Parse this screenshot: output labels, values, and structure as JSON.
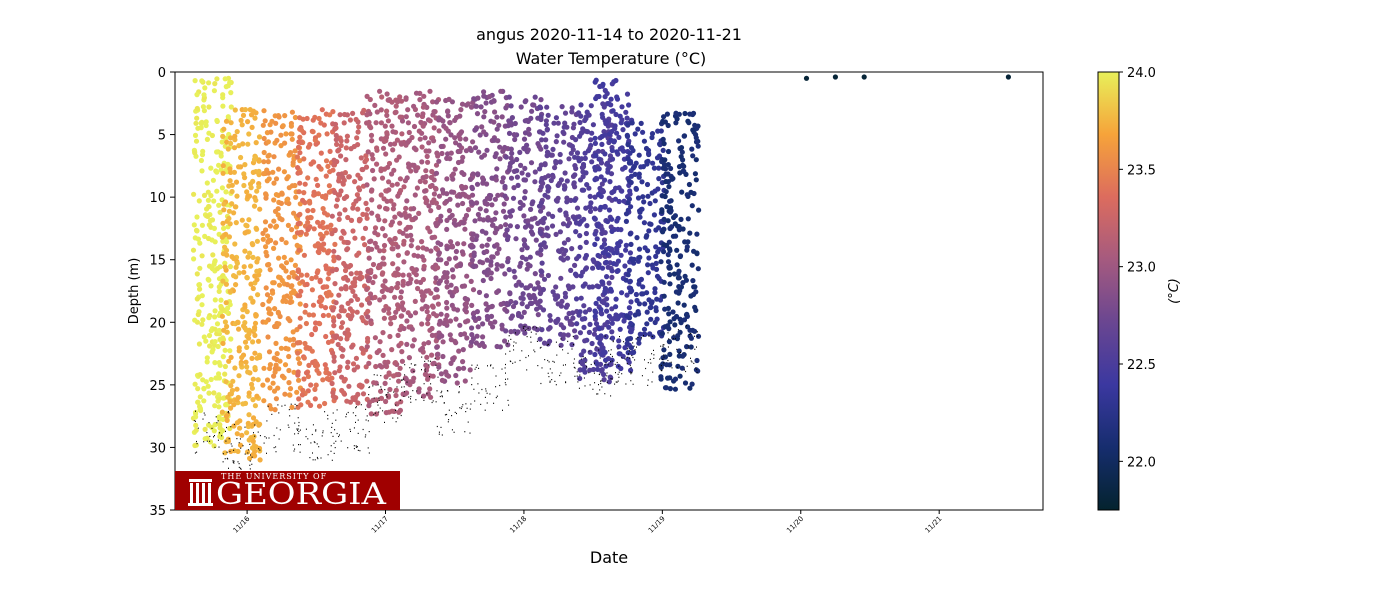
{
  "chart_data": {
    "type": "scatter",
    "title": "angus 2020-11-14 to 2020-11-21",
    "subtitle": "Water Temperature (°C)",
    "xlabel": "Date",
    "ylabel": "Depth (m)",
    "xlim": [
      "2020-11-15 11:30",
      "2020-11-21 18:00"
    ],
    "ylim": [
      35,
      0
    ],
    "yaxis_inverted": true,
    "x_ticks": [
      "11/16",
      "11/17",
      "11/18",
      "11/19",
      "11/20",
      "11/21"
    ],
    "y_ticks": [
      "0",
      "5",
      "10",
      "15",
      "20",
      "25",
      "30",
      "35"
    ],
    "grid": false,
    "colorbar": {
      "label": "(°C)",
      "range": [
        21.75,
        24.0
      ],
      "ticks": [
        "22.0",
        "22.5",
        "23.0",
        "23.5",
        "24.0"
      ],
      "colormap": "thermal",
      "colors": [
        "#04232e",
        "#162d6e",
        "#3b38a0",
        "#6a4691",
        "#a55a7f",
        "#dc6c5e",
        "#f6a33a",
        "#e8f05a"
      ]
    },
    "profiles": [
      {
        "date": "2020-11-15 18:00",
        "temp": 24.0,
        "min_depth": 0.5,
        "max_depth": 30.0,
        "bottom_depth": 29.0
      },
      {
        "date": "2020-11-15 23:00",
        "temp": 23.75,
        "min_depth": 3.0,
        "max_depth": 31.0,
        "bottom_depth": 30.0
      },
      {
        "date": "2020-11-16 06:00",
        "temp": 23.6,
        "min_depth": 3.0,
        "max_depth": 27.0,
        "bottom_depth": 28.5
      },
      {
        "date": "2020-11-16 12:00",
        "temp": 23.4,
        "min_depth": 3.0,
        "max_depth": 27.0,
        "bottom_depth": 29.0
      },
      {
        "date": "2020-11-16 18:00",
        "temp": 23.25,
        "min_depth": 3.0,
        "max_depth": 26.5,
        "bottom_depth": 28.5
      },
      {
        "date": "2020-11-17 00:00",
        "temp": 23.1,
        "min_depth": 1.5,
        "max_depth": 27.5,
        "bottom_depth": 26.0
      },
      {
        "date": "2020-11-17 06:00",
        "temp": 23.05,
        "min_depth": 1.5,
        "max_depth": 26.0,
        "bottom_depth": 24.5
      },
      {
        "date": "2020-11-17 12:00",
        "temp": 22.95,
        "min_depth": 2.0,
        "max_depth": 25.0,
        "bottom_depth": 27.0
      },
      {
        "date": "2020-11-17 18:00",
        "temp": 22.85,
        "min_depth": 1.5,
        "max_depth": 22.0,
        "bottom_depth": 25.0
      },
      {
        "date": "2020-11-18 00:00",
        "temp": 22.75,
        "min_depth": 2.0,
        "max_depth": 21.0,
        "bottom_depth": 22.0
      },
      {
        "date": "2020-11-18 06:00",
        "temp": 22.65,
        "min_depth": 2.5,
        "max_depth": 22.0,
        "bottom_depth": 23.0
      },
      {
        "date": "2020-11-18 12:00",
        "temp": 22.55,
        "min_depth": 2.5,
        "max_depth": 25.0,
        "bottom_depth": 24.0
      },
      {
        "date": "2020-11-18 15:30",
        "temp": 22.45,
        "min_depth": 0.5,
        "max_depth": 24.0,
        "bottom_depth": 23.0
      },
      {
        "date": "2020-11-18 21:00",
        "temp": 22.3,
        "min_depth": 4.0,
        "max_depth": 22.5,
        "bottom_depth": 23.0
      },
      {
        "date": "2020-11-19 03:00",
        "temp": 22.1,
        "min_depth": 3.0,
        "max_depth": 25.5,
        "bottom_depth": 22.0
      },
      {
        "date": "2020-11-20 01:00",
        "temp": 21.8,
        "min_depth": 0.5,
        "max_depth": 0.5,
        "bottom_depth": null
      },
      {
        "date": "2020-11-20 06:00",
        "temp": 21.8,
        "min_depth": 0.4,
        "max_depth": 0.4,
        "bottom_depth": null
      },
      {
        "date": "2020-11-20 11:00",
        "temp": 21.8,
        "min_depth": 0.4,
        "max_depth": 0.4,
        "bottom_depth": null
      },
      {
        "date": "2020-11-21 12:00",
        "temp": 21.8,
        "min_depth": 0.4,
        "max_depth": 0.4,
        "bottom_depth": null
      }
    ]
  },
  "logo": {
    "line1": "THE UNIVERSITY OF",
    "line2": "GEORGIA",
    "background": "#a00000"
  }
}
